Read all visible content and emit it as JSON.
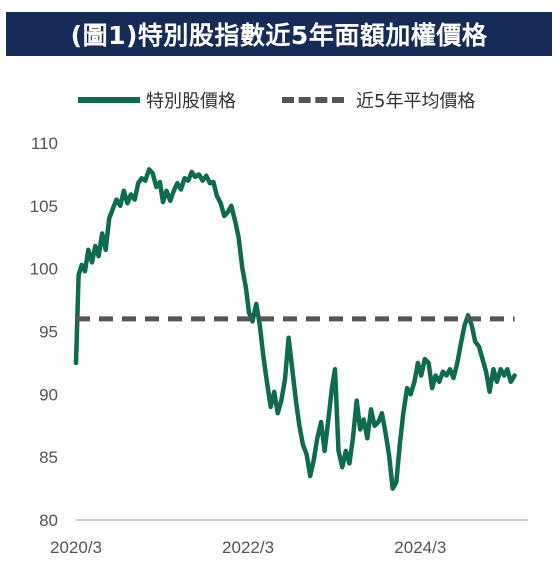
{
  "title": "(圖1)特別股指數近5年面額加權價格",
  "legend": {
    "series1": "特別股價格",
    "series2": "近5年平均價格"
  },
  "colors": {
    "title_bg": "#162b57",
    "price_line": "#0e6b4f",
    "avg_line": "#555555"
  },
  "chart_data": {
    "type": "line",
    "title": "(圖1)特別股指數近5年面額加權價格",
    "xlabel": "",
    "ylabel": "",
    "ylim": [
      80,
      110
    ],
    "yticks": [
      80,
      85,
      90,
      95,
      100,
      105,
      110
    ],
    "x_range": [
      "2020-03",
      "2025-06"
    ],
    "xtick_labels": [
      {
        "label": "2020/3",
        "x": "2020-03"
      },
      {
        "label": "2022/3",
        "x": "2022-03"
      },
      {
        "label": "2024/3",
        "x": "2024-03"
      }
    ],
    "grid": false,
    "legend_position": "top",
    "series": [
      {
        "name": "特別股價格",
        "style": "solid",
        "color": "#0e6b4f",
        "points": [
          [
            "2020-03-01",
            92.5
          ],
          [
            "2020-03-12",
            99.5
          ],
          [
            "2020-03-25",
            100.3
          ],
          [
            "2020-04-08",
            99.8
          ],
          [
            "2020-04-22",
            101.5
          ],
          [
            "2020-05-08",
            100.5
          ],
          [
            "2020-05-22",
            101.8
          ],
          [
            "2020-06-05",
            101.0
          ],
          [
            "2020-06-20",
            102.8
          ],
          [
            "2020-07-05",
            101.5
          ],
          [
            "2020-07-20",
            104.0
          ],
          [
            "2020-08-05",
            104.8
          ],
          [
            "2020-08-20",
            105.5
          ],
          [
            "2020-09-05",
            105.0
          ],
          [
            "2020-09-20",
            106.2
          ],
          [
            "2020-10-05",
            105.2
          ],
          [
            "2020-10-20",
            105.9
          ],
          [
            "2020-11-05",
            105.5
          ],
          [
            "2020-11-20",
            106.8
          ],
          [
            "2020-12-05",
            107.2
          ],
          [
            "2020-12-20",
            107.0
          ],
          [
            "2021-01-05",
            107.9
          ],
          [
            "2021-01-20",
            107.6
          ],
          [
            "2021-02-05",
            106.5
          ],
          [
            "2021-02-20",
            106.9
          ],
          [
            "2021-03-05",
            105.3
          ],
          [
            "2021-03-20",
            106.2
          ],
          [
            "2021-04-05",
            105.4
          ],
          [
            "2021-04-20",
            106.2
          ],
          [
            "2021-05-05",
            106.8
          ],
          [
            "2021-05-20",
            106.3
          ],
          [
            "2021-06-05",
            107.2
          ],
          [
            "2021-06-20",
            107.0
          ],
          [
            "2021-07-05",
            107.7
          ],
          [
            "2021-07-20",
            107.3
          ],
          [
            "2021-08-05",
            107.5
          ],
          [
            "2021-08-20",
            107.0
          ],
          [
            "2021-09-05",
            107.4
          ],
          [
            "2021-09-20",
            106.8
          ],
          [
            "2021-10-05",
            106.9
          ],
          [
            "2021-10-20",
            105.8
          ],
          [
            "2021-11-05",
            105.2
          ],
          [
            "2021-11-20",
            104.2
          ],
          [
            "2021-12-05",
            104.5
          ],
          [
            "2021-12-20",
            105.0
          ],
          [
            "2022-01-05",
            103.8
          ],
          [
            "2022-01-20",
            102.5
          ],
          [
            "2022-02-05",
            100.0
          ],
          [
            "2022-02-20",
            98.5
          ],
          [
            "2022-03-05",
            96.5
          ],
          [
            "2022-03-20",
            95.8
          ],
          [
            "2022-04-05",
            97.2
          ],
          [
            "2022-04-20",
            95.5
          ],
          [
            "2022-05-05",
            93.0
          ],
          [
            "2022-05-20",
            91.0
          ],
          [
            "2022-06-05",
            89.0
          ],
          [
            "2022-06-20",
            90.2
          ],
          [
            "2022-07-05",
            88.5
          ],
          [
            "2022-07-20",
            89.5
          ],
          [
            "2022-08-05",
            91.2
          ],
          [
            "2022-08-20",
            94.5
          ],
          [
            "2022-09-05",
            92.0
          ],
          [
            "2022-09-20",
            89.5
          ],
          [
            "2022-10-05",
            87.5
          ],
          [
            "2022-10-20",
            86.0
          ],
          [
            "2022-11-05",
            85.2
          ],
          [
            "2022-11-20",
            83.5
          ],
          [
            "2022-12-05",
            84.8
          ],
          [
            "2022-12-20",
            86.5
          ],
          [
            "2023-01-05",
            87.8
          ],
          [
            "2023-01-20",
            85.5
          ],
          [
            "2023-02-05",
            88.0
          ],
          [
            "2023-02-20",
            90.5
          ],
          [
            "2023-03-05",
            92.0
          ],
          [
            "2023-03-20",
            85.5
          ],
          [
            "2023-04-05",
            84.2
          ],
          [
            "2023-04-20",
            85.5
          ],
          [
            "2023-05-05",
            84.5
          ],
          [
            "2023-05-20",
            86.5
          ],
          [
            "2023-06-05",
            89.5
          ],
          [
            "2023-06-20",
            87.2
          ],
          [
            "2023-07-05",
            88.0
          ],
          [
            "2023-07-20",
            86.5
          ],
          [
            "2023-08-05",
            88.8
          ],
          [
            "2023-08-20",
            87.5
          ],
          [
            "2023-09-05",
            87.8
          ],
          [
            "2023-09-20",
            88.5
          ],
          [
            "2023-10-05",
            87.0
          ],
          [
            "2023-10-20",
            85.2
          ],
          [
            "2023-11-05",
            82.5
          ],
          [
            "2023-11-20",
            83.0
          ],
          [
            "2023-12-05",
            86.0
          ],
          [
            "2023-12-20",
            88.5
          ],
          [
            "2024-01-05",
            90.5
          ],
          [
            "2024-01-20",
            90.0
          ],
          [
            "2024-02-05",
            91.0
          ],
          [
            "2024-02-20",
            92.5
          ],
          [
            "2024-03-05",
            91.5
          ],
          [
            "2024-03-20",
            92.8
          ],
          [
            "2024-04-05",
            92.5
          ],
          [
            "2024-04-20",
            90.5
          ],
          [
            "2024-05-05",
            91.5
          ],
          [
            "2024-05-20",
            91.0
          ],
          [
            "2024-06-05",
            91.8
          ],
          [
            "2024-06-20",
            91.5
          ],
          [
            "2024-07-05",
            92.0
          ],
          [
            "2024-07-20",
            91.3
          ],
          [
            "2024-08-05",
            92.5
          ],
          [
            "2024-08-20",
            94.0
          ],
          [
            "2024-09-05",
            95.5
          ],
          [
            "2024-09-20",
            96.3
          ],
          [
            "2024-10-05",
            95.5
          ],
          [
            "2024-10-20",
            94.2
          ],
          [
            "2024-11-05",
            93.8
          ],
          [
            "2024-11-20",
            92.8
          ],
          [
            "2024-12-05",
            91.8
          ],
          [
            "2024-12-20",
            90.2
          ],
          [
            "2025-01-05",
            92.0
          ],
          [
            "2025-01-20",
            91.0
          ],
          [
            "2025-02-05",
            92.0
          ],
          [
            "2025-02-20",
            91.5
          ],
          [
            "2025-03-05",
            92.0
          ],
          [
            "2025-03-20",
            91.0
          ],
          [
            "2025-04-05",
            91.5
          ]
        ]
      },
      {
        "name": "近5年平均價格",
        "style": "dashed",
        "color": "#555555",
        "points": [
          [
            "2020-03-01",
            96.0
          ],
          [
            "2025-04-05",
            96.0
          ]
        ]
      }
    ]
  }
}
